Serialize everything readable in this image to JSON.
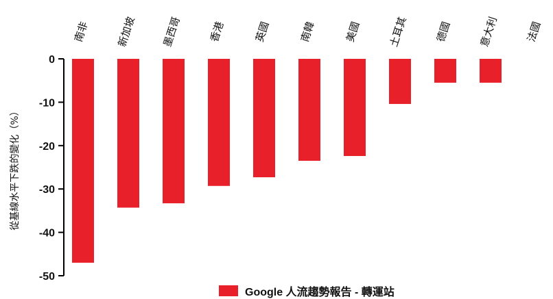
{
  "chart_data": {
    "type": "bar",
    "categories": [
      "南非",
      "新加坡",
      "墨西哥",
      "香港",
      "英國",
      "南韓",
      "美國",
      "土耳其",
      "德國",
      "意大利",
      "法國"
    ],
    "series": [
      {
        "name": "Google 人流趨勢報告 - 轉運站",
        "values": [
          -47,
          -34.3,
          -33.3,
          -29.3,
          -27.3,
          -23.5,
          -22.4,
          -10.4,
          -5.5,
          -5.5,
          0
        ],
        "color": "#e8202a"
      }
    ],
    "yticks": [
      0,
      -10,
      -20,
      -30,
      -40,
      -50
    ],
    "ylim": [
      -50,
      0
    ],
    "ylabel": "從基線水平下跌的變化（%）",
    "xlabel": "",
    "title": "",
    "legend_position": "bottom-center",
    "grid": false
  }
}
